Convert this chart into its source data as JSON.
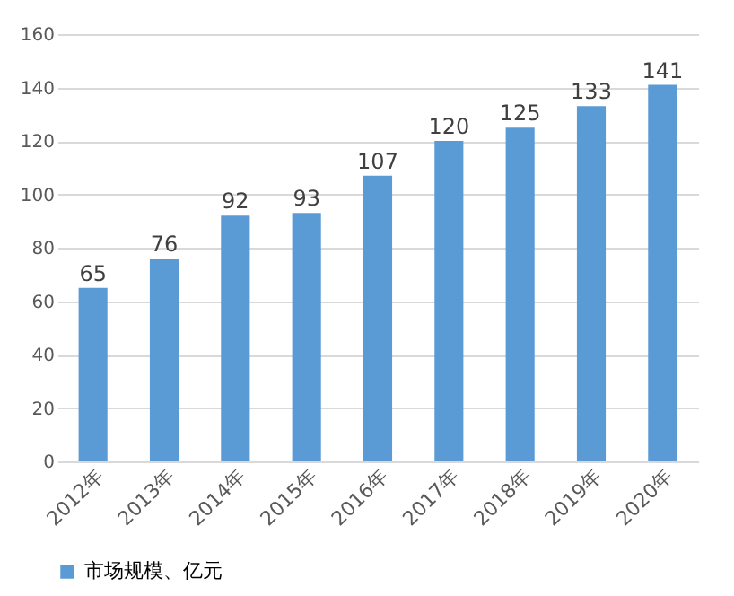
{
  "chart_data": {
    "type": "bar",
    "categories": [
      "2012年",
      "2013年",
      "2014年",
      "2015年",
      "2016年",
      "2017年",
      "2018年",
      "2019年",
      "2020年"
    ],
    "series": [
      {
        "name": "市场规模、亿元",
        "color": "#5b9bd5",
        "values": [
          65,
          76,
          92,
          93,
          107,
          120,
          125,
          133,
          141
        ]
      }
    ],
    "ylim": [
      0,
      160
    ],
    "yticks": [
      0,
      20,
      40,
      60,
      80,
      100,
      120,
      140,
      160
    ],
    "grid": "y",
    "legend": "bottom",
    "data_labels": true
  }
}
